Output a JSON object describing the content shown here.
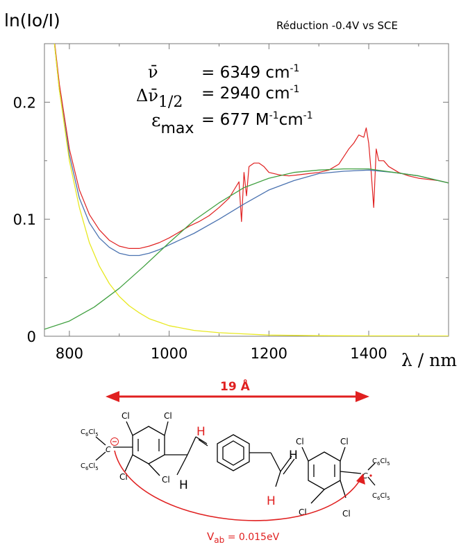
{
  "chart_data": {
    "type": "line",
    "y_axis_title": "ln(Io/I)",
    "x_axis_title": "λ / nm",
    "condition": "Réduction  -0.4V vs SCE",
    "xlim": [
      750,
      1560
    ],
    "ylim": [
      0,
      0.25
    ],
    "x_ticks": [
      800,
      1000,
      1200,
      1400
    ],
    "x_tick_labels": [
      "800",
      "1000",
      "1200",
      "1400"
    ],
    "y_ticks": [
      0,
      0.1,
      0.2
    ],
    "y_tick_labels": [
      "0",
      "0.1",
      "0.2"
    ],
    "grid": false,
    "annotations": {
      "nu_bar_symbol": "ν̄",
      "nu_bar_value": "= 6349 cm",
      "nu_bar_exp": "-1",
      "delta_nu_symbol": "Δν̄",
      "delta_nu_sub": "1/2",
      "delta_nu_value": "= 2940 cm",
      "delta_nu_exp": "-1",
      "eps_symbol": "ε",
      "eps_sub": "max",
      "eps_value_a": "= 677 M",
      "eps_exp_a": "-1",
      "eps_value_b": "cm",
      "eps_exp_b": "-1"
    },
    "series": [
      {
        "color": "#e02020",
        "x": [
          760,
          780,
          800,
          820,
          840,
          860,
          880,
          900,
          920,
          940,
          960,
          980,
          1000,
          1020,
          1040,
          1060,
          1080,
          1100,
          1120,
          1130,
          1140,
          1145,
          1150,
          1155,
          1160,
          1170,
          1180,
          1190,
          1200,
          1220,
          1240,
          1260,
          1280,
          1300,
          1320,
          1340,
          1360,
          1370,
          1380,
          1390,
          1395,
          1400,
          1405,
          1410,
          1415,
          1420,
          1430,
          1440,
          1460,
          1480,
          1500,
          1520,
          1540,
          1560
        ],
        "y": [
          0.29,
          0.215,
          0.16,
          0.125,
          0.104,
          0.091,
          0.082,
          0.077,
          0.075,
          0.075,
          0.077,
          0.08,
          0.084,
          0.089,
          0.094,
          0.098,
          0.103,
          0.11,
          0.118,
          0.125,
          0.132,
          0.098,
          0.14,
          0.12,
          0.145,
          0.148,
          0.148,
          0.145,
          0.14,
          0.138,
          0.137,
          0.138,
          0.139,
          0.14,
          0.142,
          0.147,
          0.16,
          0.165,
          0.172,
          0.17,
          0.178,
          0.165,
          0.14,
          0.11,
          0.16,
          0.15,
          0.15,
          0.145,
          0.14,
          0.137,
          0.135,
          0.134,
          0.133,
          0.131
        ]
      },
      {
        "color": "#4a72b0",
        "x": [
          760,
          780,
          800,
          820,
          840,
          860,
          880,
          900,
          920,
          940,
          960,
          980,
          1000,
          1050,
          1100,
          1150,
          1200,
          1250,
          1300,
          1350,
          1400,
          1450,
          1500,
          1560
        ],
        "y": [
          0.29,
          0.21,
          0.155,
          0.118,
          0.097,
          0.084,
          0.076,
          0.071,
          0.069,
          0.069,
          0.071,
          0.074,
          0.078,
          0.088,
          0.1,
          0.113,
          0.125,
          0.133,
          0.139,
          0.141,
          0.142,
          0.14,
          0.137,
          0.131
        ]
      },
      {
        "color": "#e8e820",
        "x": [
          760,
          780,
          800,
          820,
          840,
          860,
          880,
          900,
          920,
          940,
          960,
          980,
          1000,
          1050,
          1100,
          1150,
          1200,
          1300,
          1400,
          1560
        ],
        "y": [
          0.29,
          0.21,
          0.15,
          0.11,
          0.08,
          0.06,
          0.045,
          0.034,
          0.026,
          0.02,
          0.015,
          0.012,
          0.009,
          0.005,
          0.003,
          0.002,
          0.001,
          0.0005,
          0.0003,
          0.0002
        ]
      },
      {
        "color": "#40a040",
        "x": [
          750,
          800,
          850,
          900,
          950,
          1000,
          1050,
          1100,
          1150,
          1200,
          1250,
          1300,
          1350,
          1400,
          1450,
          1500,
          1560
        ],
        "y": [
          0.006,
          0.013,
          0.025,
          0.041,
          0.06,
          0.08,
          0.099,
          0.114,
          0.127,
          0.135,
          0.14,
          0.142,
          0.143,
          0.143,
          0.14,
          0.137,
          0.131
        ]
      }
    ]
  },
  "molecule": {
    "distance_label": "19 Å",
    "coupling_label_main": "V",
    "coupling_label_sub": "ab",
    "coupling_label_rest": " = 0.015eV",
    "atom_labels": [
      "Cl",
      "Cl",
      "Cl",
      "Cl",
      "Cl",
      "Cl",
      "Cl",
      "Cl",
      "H",
      "H",
      "H",
      "H"
    ],
    "aryl_group": "C",
    "aryl_sub_6": "6",
    "aryl_cl": "Cl",
    "aryl_sub_5": "5"
  }
}
